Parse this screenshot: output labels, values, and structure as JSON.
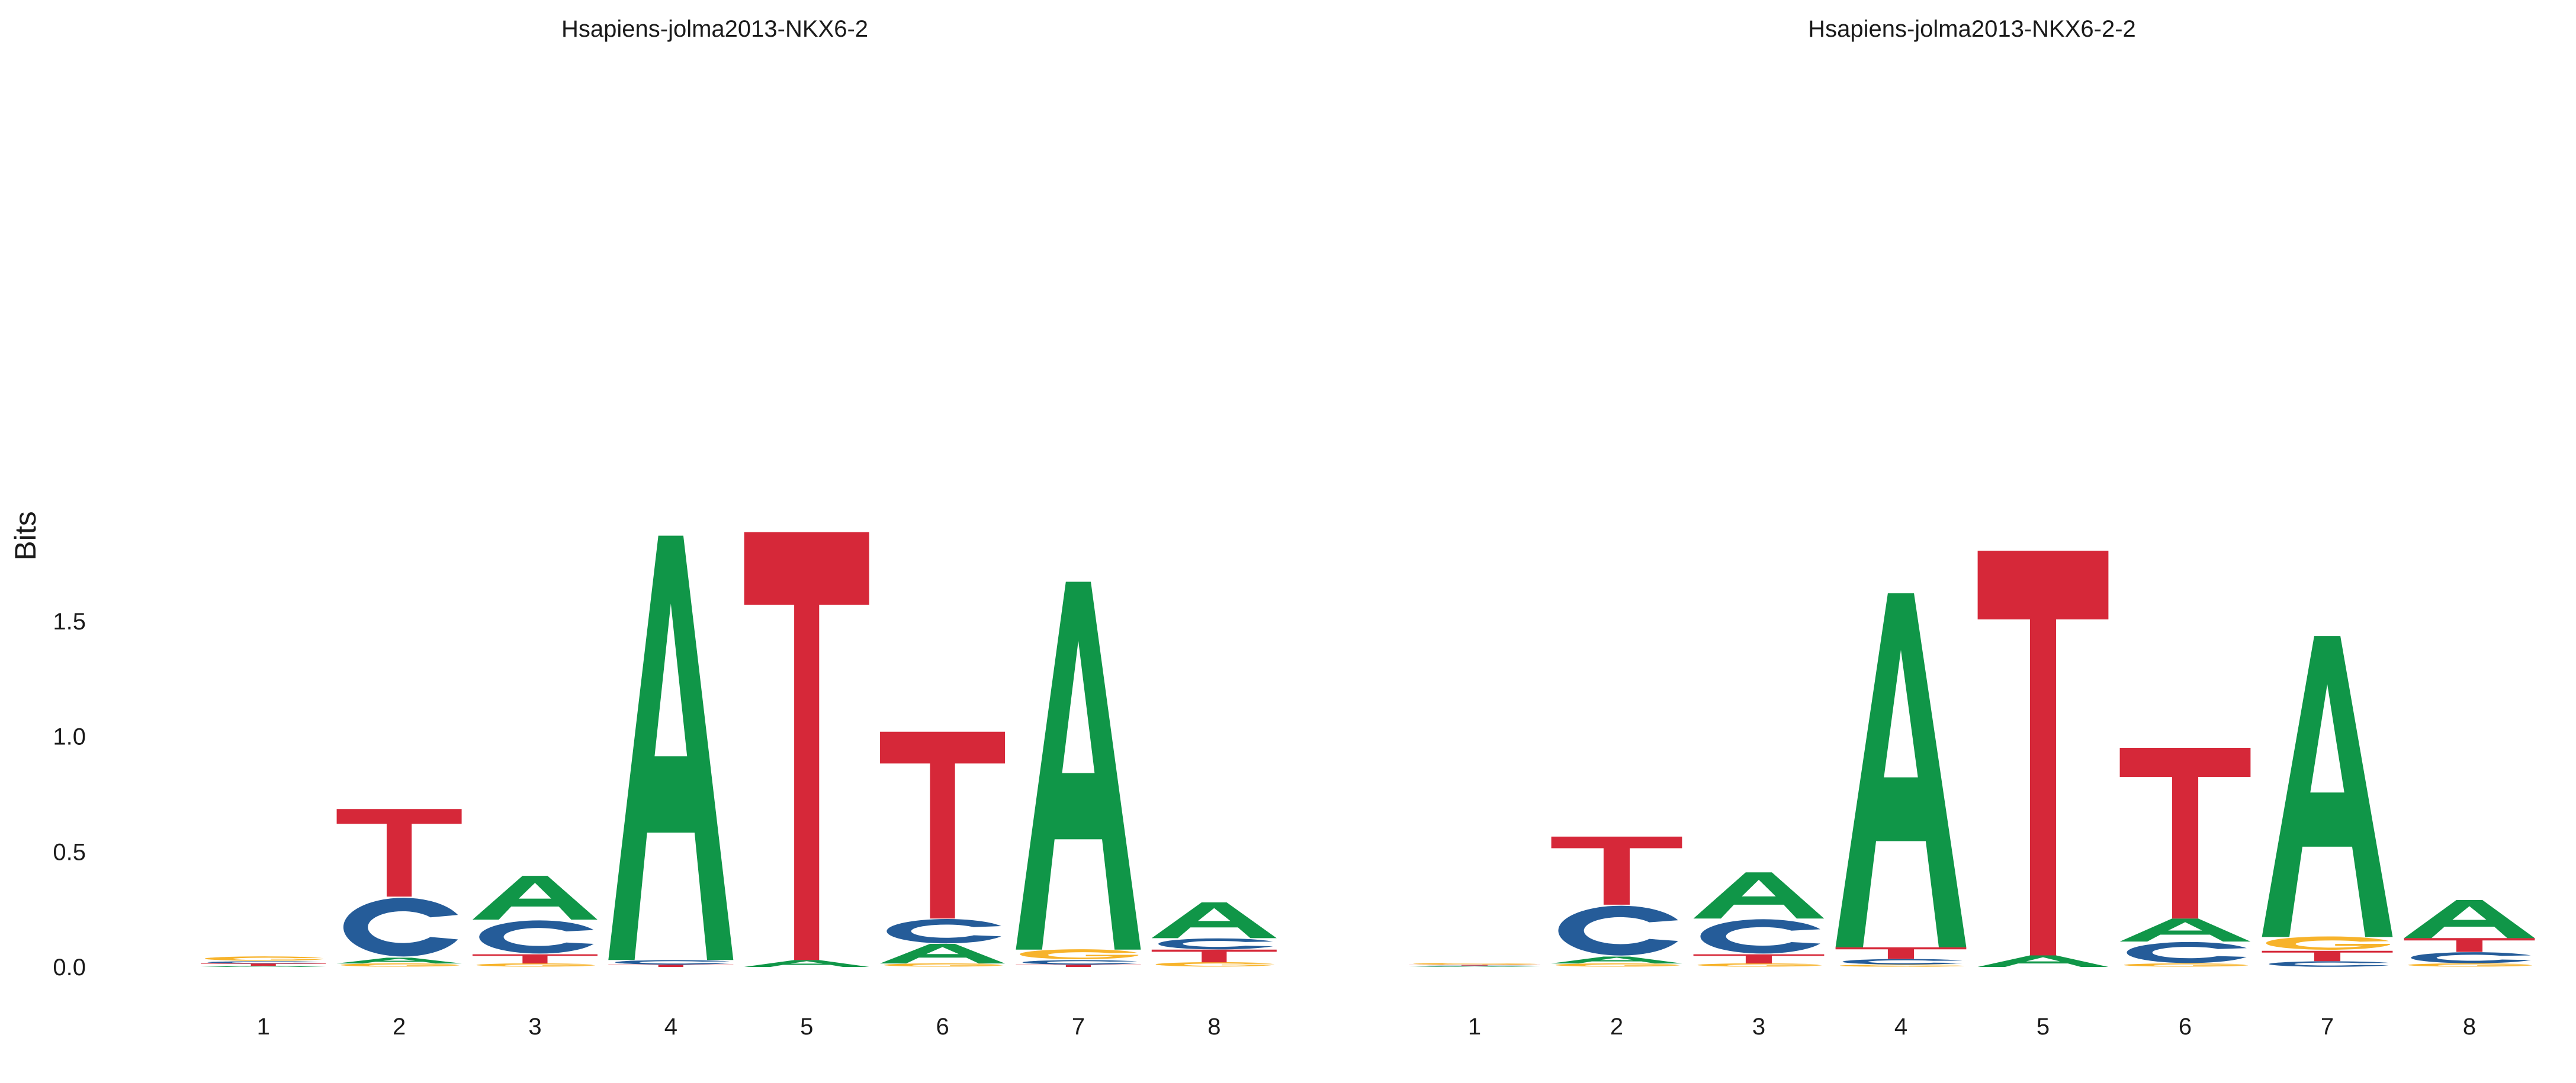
{
  "colors": {
    "A": "#109648",
    "C": "#255C99",
    "G": "#F7B32B",
    "T": "#D62839"
  },
  "chart_data": [
    {
      "type": "sequence-logo",
      "title": "Hsapiens-jolma2013-NKX6-2",
      "ylabel": "Bits",
      "ylim": [
        0,
        2
      ],
      "yticks": [
        0.0,
        0.5,
        1.0,
        1.5
      ],
      "ytick_labels": [
        "0.0",
        "0.5",
        "1.0",
        "1.5"
      ],
      "x": [
        "1",
        "2",
        "3",
        "4",
        "5",
        "6",
        "7",
        "8"
      ],
      "grid": false,
      "positions": [
        [
          [
            "A",
            0.005
          ],
          [
            "T",
            0.01
          ],
          [
            "C",
            0.01
          ],
          [
            "G",
            0.02
          ]
        ],
        [
          [
            "G",
            0.015
          ],
          [
            "A",
            0.025
          ],
          [
            "C",
            0.265
          ],
          [
            "T",
            0.38
          ]
        ],
        [
          [
            "G",
            0.015
          ],
          [
            "T",
            0.04
          ],
          [
            "C",
            0.15
          ],
          [
            "A",
            0.19
          ]
        ],
        [
          [
            "T",
            0.01
          ],
          [
            "C",
            0.02
          ],
          [
            "A",
            1.84
          ]
        ],
        [
          [
            "A",
            0.03
          ],
          [
            "T",
            1.855
          ]
        ],
        [
          [
            "G",
            0.015
          ],
          [
            "A",
            0.085
          ],
          [
            "C",
            0.11
          ],
          [
            "T",
            0.81
          ]
        ],
        [
          [
            "T",
            0.01
          ],
          [
            "C",
            0.02
          ],
          [
            "G",
            0.045
          ],
          [
            "A",
            1.595
          ]
        ],
        [
          [
            "G",
            0.02
          ],
          [
            "T",
            0.055
          ],
          [
            "C",
            0.05
          ],
          [
            "A",
            0.155
          ]
        ]
      ]
    },
    {
      "type": "sequence-logo",
      "title": "Hsapiens-jolma2013-NKX6-2-2",
      "ylabel": "",
      "ylim": [
        0,
        2
      ],
      "x": [
        "1",
        "2",
        "3",
        "4",
        "5",
        "6",
        "7",
        "8"
      ],
      "grid": false,
      "positions": [
        [
          [
            "A",
            0.003
          ],
          [
            "C",
            0.003
          ],
          [
            "T",
            0.003
          ],
          [
            "G",
            0.008
          ]
        ],
        [
          [
            "G",
            0.015
          ],
          [
            "A",
            0.03
          ],
          [
            "C",
            0.225
          ],
          [
            "T",
            0.295
          ]
        ],
        [
          [
            "G",
            0.015
          ],
          [
            "T",
            0.04
          ],
          [
            "C",
            0.155
          ],
          [
            "A",
            0.2
          ]
        ],
        [
          [
            "G",
            0.01
          ],
          [
            "C",
            0.025
          ],
          [
            "T",
            0.05
          ],
          [
            "A",
            1.535
          ]
        ],
        [
          [
            "A",
            0.05
          ],
          [
            "T",
            1.755
          ]
        ],
        [
          [
            "G",
            0.015
          ],
          [
            "C",
            0.095
          ],
          [
            "A",
            0.1
          ],
          [
            "T",
            0.74
          ]
        ],
        [
          [
            "C",
            0.025
          ],
          [
            "T",
            0.045
          ],
          [
            "G",
            0.06
          ],
          [
            "A",
            1.305
          ]
        ],
        [
          [
            "G",
            0.015
          ],
          [
            "C",
            0.05
          ],
          [
            "T",
            0.06
          ],
          [
            "A",
            0.165
          ]
        ]
      ]
    }
  ]
}
